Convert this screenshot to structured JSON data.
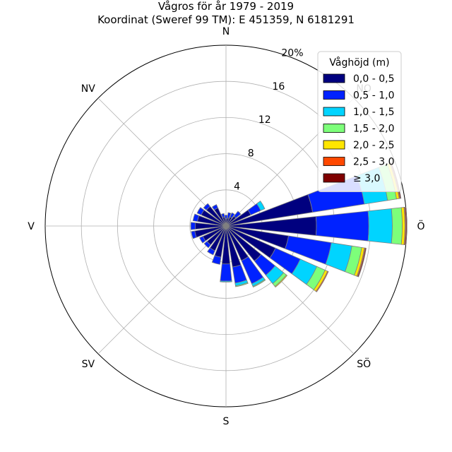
{
  "chart_data": {
    "type": "windrose",
    "title": "Vågros för år 1979 - 2019",
    "subtitle": "Koordinat (Sweref 99 TM): E 451359, N 6181291",
    "radial_unit": "%",
    "radial_ticks": [
      4,
      8,
      12,
      16,
      20
    ],
    "radial_tick_labels": [
      "4",
      "8",
      "12",
      "16",
      "20%"
    ],
    "rmax": 20,
    "direction_labels": [
      {
        "label": "N",
        "angle": 0
      },
      {
        "label": "NO",
        "angle": 45
      },
      {
        "label": "Ö",
        "angle": 90
      },
      {
        "label": "SÖ",
        "angle": 135
      },
      {
        "label": "S",
        "angle": 180
      },
      {
        "label": "SV",
        "angle": 225
      },
      {
        "label": "V",
        "angle": 270
      },
      {
        "label": "NV",
        "angle": 315
      }
    ],
    "legend": {
      "title": "Våghöjd (m)",
      "placement": "top-right"
    },
    "series": [
      {
        "name": "0,0 - 0,5",
        "color": "#00007f"
      },
      {
        "name": "0,5 - 1,0",
        "color": "#0022ff"
      },
      {
        "name": "1,0 - 1,5",
        "color": "#00d4ff"
      },
      {
        "name": "1,5 - 2,0",
        "color": "#7dff7a"
      },
      {
        "name": "2,0 - 2,5",
        "color": "#ffe600"
      },
      {
        "name": "2,5 - 3,0",
        "color": "#ff4800"
      },
      {
        "name": "≥ 3,0",
        "color": "#7f0000"
      }
    ],
    "sector_width_deg": 15,
    "sectors": [
      {
        "direction": 0,
        "values": [
          0.8,
          0.4,
          0,
          0,
          0,
          0,
          0
        ]
      },
      {
        "direction": 15,
        "values": [
          0.9,
          0.6,
          0,
          0,
          0,
          0,
          0
        ]
      },
      {
        "direction": 30,
        "values": [
          1.1,
          0.5,
          0,
          0,
          0,
          0,
          0
        ]
      },
      {
        "direction": 45,
        "values": [
          1.4,
          0.7,
          0,
          0,
          0,
          0,
          0
        ]
      },
      {
        "direction": 60,
        "values": [
          3.0,
          1.2,
          0.5,
          0,
          0,
          0,
          0
        ]
      },
      {
        "direction": 75,
        "values": [
          9.7,
          5.8,
          2.6,
          1.0,
          0.3,
          0.1,
          0.1
        ]
      },
      {
        "direction": 90,
        "values": [
          10.0,
          5.8,
          2.6,
          1.1,
          0.3,
          0.1,
          0.1
        ]
      },
      {
        "direction": 105,
        "values": [
          7.0,
          4.8,
          2.3,
          1.1,
          0.3,
          0.1,
          0.1
        ]
      },
      {
        "direction": 120,
        "values": [
          6.0,
          3.0,
          2.0,
          1.0,
          0.3,
          0.1,
          0
        ]
      },
      {
        "direction": 135,
        "values": [
          5.0,
          2.0,
          1.2,
          0.4,
          0.1,
          0,
          0
        ]
      },
      {
        "direction": 150,
        "values": [
          4.2,
          2.8,
          0.3,
          0.1,
          0,
          0,
          0
        ]
      },
      {
        "direction": 165,
        "values": [
          4.6,
          1.8,
          0.3,
          0.1,
          0,
          0,
          0
        ]
      },
      {
        "direction": 180,
        "values": [
          4.2,
          1.9,
          0.1,
          0,
          0,
          0,
          0
        ]
      },
      {
        "direction": 195,
        "values": [
          3.5,
          0.8,
          0,
          0,
          0,
          0,
          0
        ]
      },
      {
        "direction": 210,
        "values": [
          3.0,
          0.5,
          0,
          0,
          0,
          0,
          0
        ]
      },
      {
        "direction": 225,
        "values": [
          2.7,
          0.4,
          0,
          0,
          0,
          0,
          0
        ]
      },
      {
        "direction": 240,
        "values": [
          2.8,
          0.4,
          0,
          0,
          0,
          0,
          0
        ]
      },
      {
        "direction": 255,
        "values": [
          3.5,
          0.4,
          0,
          0,
          0,
          0,
          0
        ]
      },
      {
        "direction": 270,
        "values": [
          3.4,
          0.5,
          0,
          0,
          0,
          0,
          0
        ]
      },
      {
        "direction": 285,
        "values": [
          3.2,
          0.5,
          0,
          0,
          0,
          0,
          0
        ]
      },
      {
        "direction": 300,
        "values": [
          3.0,
          0.5,
          0,
          0,
          0,
          0,
          0
        ]
      },
      {
        "direction": 315,
        "values": [
          2.8,
          0.4,
          0,
          0,
          0,
          0,
          0
        ]
      },
      {
        "direction": 330,
        "values": [
          2.2,
          0.4,
          0,
          0,
          0,
          0,
          0
        ]
      },
      {
        "direction": 345,
        "values": [
          1.0,
          0.4,
          0,
          0,
          0,
          0,
          0
        ]
      }
    ]
  }
}
